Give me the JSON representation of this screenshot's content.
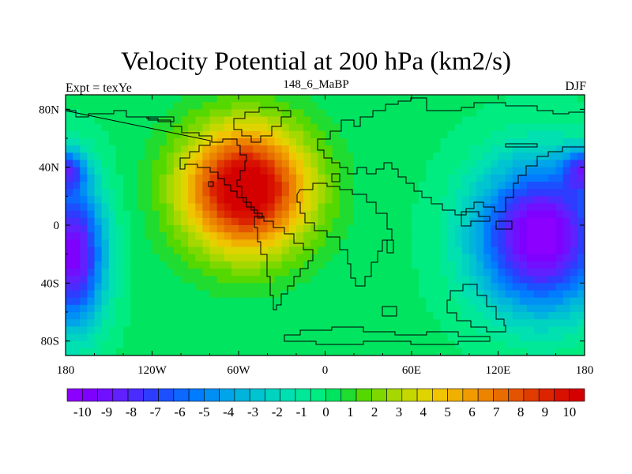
{
  "chart_data": {
    "type": "heatmap",
    "title": "Velocity Potential at 200 hPa (km2/s)",
    "left_label": "Expt = texYe",
    "center_label": "148_6_MaBP",
    "right_label": "DJF",
    "x_ticks": [
      "180",
      "120W",
      "60W",
      "0",
      "60E",
      "120E",
      "180"
    ],
    "x_tick_values": [
      -180,
      -120,
      -60,
      0,
      60,
      120,
      180
    ],
    "y_ticks": [
      "80N",
      "40N",
      "0",
      "40S",
      "80S"
    ],
    "y_tick_values": [
      80,
      40,
      0,
      -40,
      -80
    ],
    "xlim": [
      -180,
      180
    ],
    "ylim": [
      -90,
      90
    ],
    "colorbar": {
      "labels": [
        "-10",
        "-9",
        "-8",
        "-7",
        "-6",
        "-5",
        "-4",
        "-3",
        "-2",
        "-1",
        "0",
        "1",
        "2",
        "3",
        "4",
        "5",
        "6",
        "7",
        "8",
        "9",
        "10"
      ],
      "min": -10,
      "max": 10,
      "step": 0.5,
      "colors": [
        "#8c00ff",
        "#7e00ff",
        "#7010ff",
        "#6020ff",
        "#4a2cff",
        "#2e3cff",
        "#1c50ff",
        "#0c68ff",
        "#007cff",
        "#0090f4",
        "#00a4e8",
        "#00b4dc",
        "#00c4d0",
        "#00d4c0",
        "#00e0b0",
        "#00e898",
        "#00ec80",
        "#00e460",
        "#20dc30",
        "#54d800",
        "#7cd800",
        "#a4d800",
        "#c4d800",
        "#e0d400",
        "#f0c400",
        "#f0b000",
        "#f09c00",
        "#ec8400",
        "#e86c00",
        "#e45400",
        "#e03c00",
        "#dc2400",
        "#d81000",
        "#d40000"
      ]
    },
    "centers": [
      {
        "lon": -55,
        "lat": 25,
        "amp": 11.5,
        "sx": 42,
        "sy": 42
      },
      {
        "lon": 150,
        "lat": -8,
        "amp": -11.0,
        "sx": 45,
        "sy": 50
      },
      {
        "lon": -175,
        "lat": -20,
        "amp": -10.0,
        "sx": 22,
        "sy": 50
      },
      {
        "lon": -180,
        "lat": 38,
        "amp": -6.0,
        "sx": 14,
        "sy": 14
      },
      {
        "lon": 180,
        "lat": 38,
        "amp": -6.0,
        "sx": 14,
        "sy": 14
      }
    ]
  }
}
